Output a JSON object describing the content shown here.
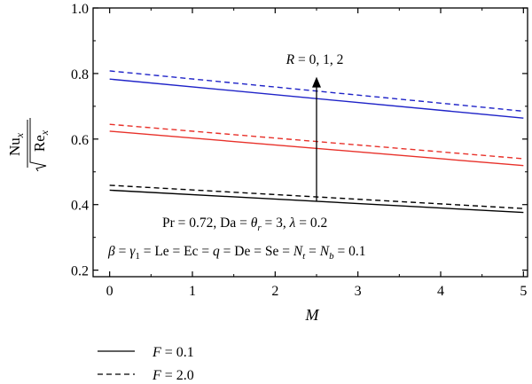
{
  "chart_data": {
    "type": "line",
    "x": [
      0,
      5
    ],
    "xlabel": "M",
    "ylabel": {
      "num_main": "Nu",
      "num_sub": "x",
      "den_main": "Re",
      "den_sub": "x"
    },
    "xlim": [
      -0.2,
      5.05
    ],
    "ylim": [
      0.18,
      1.0
    ],
    "xticks": [
      "0",
      "1",
      "2",
      "3",
      "4",
      "5"
    ],
    "xtick_values": [
      0,
      1,
      2,
      3,
      4,
      5
    ],
    "yticks": [
      "0.2",
      "0.4",
      "0.6",
      "0.8",
      "1.0"
    ],
    "ytick_values": [
      0.2,
      0.4,
      0.6,
      0.8,
      1.0
    ],
    "grid": false,
    "series": [
      {
        "param": "R = 0",
        "F": "F = 0.1",
        "style": "solid",
        "color": "#000000",
        "values": [
          0.444,
          0.376
        ]
      },
      {
        "param": "R = 0",
        "F": "F = 2.0",
        "style": "dashed",
        "color": "#000000",
        "values": [
          0.459,
          0.388
        ]
      },
      {
        "param": "R = 1",
        "F": "F = 0.1",
        "style": "solid",
        "color": "#e8312a",
        "values": [
          0.624,
          0.519
        ]
      },
      {
        "param": "R = 1",
        "F": "F = 2.0",
        "style": "dashed",
        "color": "#e8312a",
        "values": [
          0.645,
          0.54
        ]
      },
      {
        "param": "R = 2",
        "F": "F = 0.1",
        "style": "solid",
        "color": "#1f23c8",
        "values": [
          0.783,
          0.664
        ]
      },
      {
        "param": "R = 2",
        "F": "F = 2.0",
        "style": "dashed",
        "color": "#1f23c8",
        "values": [
          0.808,
          0.685
        ]
      }
    ],
    "annotations": {
      "arrow_label": "R = 0, 1, 2",
      "arrow_x": 2.5,
      "arrow_from_y": 0.41,
      "arrow_to_y": 0.79,
      "params_line1": "Pr = 0.72, Da = θr = 3, λ = 0.2",
      "params_line2": "β = γ1 = Le = Ec = q = De = Se = Nt = Nb = 0.1"
    },
    "legend": {
      "placement": "bottom-left",
      "entries": [
        {
          "style": "solid",
          "label": "F = 0.1"
        },
        {
          "style": "dashed",
          "label": "F = 2.0"
        }
      ]
    }
  }
}
